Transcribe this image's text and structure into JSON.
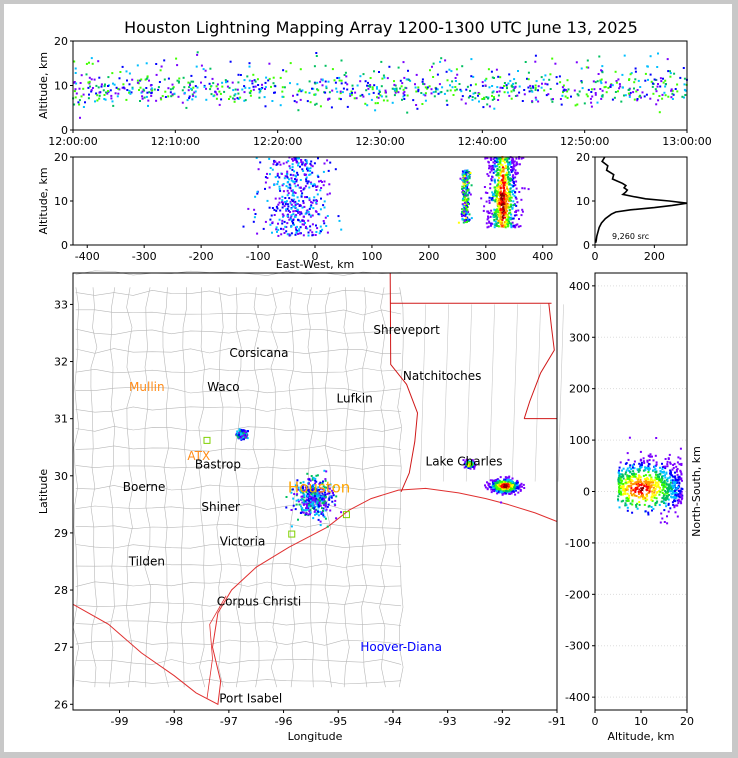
{
  "chart_data": [
    {
      "id": "time-altitude",
      "type": "scatter",
      "title": "Houston Lightning Mapping Array 1200-1300 UTC June 13, 2025",
      "xlabel": "",
      "ylabel": "Altitude, km",
      "xticks": [
        "12:00:00",
        "12:10:00",
        "12:20:00",
        "12:30:00",
        "12:40:00",
        "12:50:00",
        "13:00:00"
      ],
      "xlim_minutes": [
        0,
        60
      ],
      "ylim": [
        0,
        20
      ],
      "yticks": [
        0,
        10,
        20
      ],
      "source_band_km": [
        5,
        15
      ],
      "densest_altitude_km": 9
    },
    {
      "id": "ew-altitude",
      "type": "scatter",
      "xlabel": "East-West, km",
      "ylabel": "Altitude, km",
      "xlim": [
        -425,
        425
      ],
      "xticks": [
        -400,
        -300,
        -200,
        -100,
        0,
        100,
        200,
        300,
        400
      ],
      "ylim": [
        0,
        20
      ],
      "yticks": [
        0,
        10,
        20
      ],
      "clusters": [
        {
          "x_center": -35,
          "x_spread": 60,
          "alt_range": [
            2,
            20
          ],
          "density": "low"
        },
        {
          "x_center": 265,
          "x_spread": 8,
          "alt_range": [
            5,
            17
          ],
          "density": "medium"
        },
        {
          "x_center": 330,
          "x_spread": 30,
          "alt_range": [
            4,
            20
          ],
          "density": "high"
        }
      ]
    },
    {
      "id": "altitude-histogram",
      "type": "line",
      "xlim": [
        0,
        310
      ],
      "xticks": [
        0,
        200
      ],
      "ylim": [
        0,
        20
      ],
      "yticks": [
        0,
        10,
        20
      ],
      "annotation": "9,260 src",
      "profile": [
        {
          "alt": 0.5,
          "count": 2
        },
        {
          "alt": 1,
          "count": 4
        },
        {
          "alt": 2,
          "count": 6
        },
        {
          "alt": 3,
          "count": 10
        },
        {
          "alt": 4,
          "count": 14
        },
        {
          "alt": 5,
          "count": 22
        },
        {
          "alt": 6,
          "count": 35
        },
        {
          "alt": 7,
          "count": 55
        },
        {
          "alt": 7.5,
          "count": 70
        },
        {
          "alt": 8,
          "count": 120
        },
        {
          "alt": 8.5,
          "count": 200
        },
        {
          "alt": 9,
          "count": 260
        },
        {
          "alt": 9.5,
          "count": 310
        },
        {
          "alt": 10,
          "count": 250
        },
        {
          "alt": 10.5,
          "count": 170
        },
        {
          "alt": 11,
          "count": 130
        },
        {
          "alt": 11.5,
          "count": 100
        },
        {
          "alt": 12,
          "count": 95
        },
        {
          "alt": 12.5,
          "count": 115
        },
        {
          "alt": 13,
          "count": 90
        },
        {
          "alt": 13.5,
          "count": 110
        },
        {
          "alt": 14,
          "count": 85
        },
        {
          "alt": 15,
          "count": 65
        },
        {
          "alt": 16,
          "count": 55
        },
        {
          "alt": 17,
          "count": 45
        },
        {
          "alt": 18,
          "count": 35
        },
        {
          "alt": 19,
          "count": 30
        },
        {
          "alt": 20,
          "count": 25
        }
      ]
    },
    {
      "id": "plan-view",
      "type": "scatter",
      "xlabel": "Longitude",
      "ylabel": "Latitude",
      "xlim": [
        -99.85,
        -91
      ],
      "xticks": [
        -99,
        -98,
        -97,
        -96,
        -95,
        -94,
        -93,
        -92,
        -91
      ],
      "ylim": [
        25.9,
        33.55
      ],
      "yticks": [
        26,
        27,
        28,
        29,
        30,
        31,
        32,
        33
      ],
      "cities": [
        {
          "name": "Shreveport",
          "lon": -93.75,
          "lat": 32.55,
          "color": "#000000"
        },
        {
          "name": "Corsicana",
          "lon": -96.45,
          "lat": 32.15,
          "color": "#000000"
        },
        {
          "name": "Natchitoches",
          "lon": -93.1,
          "lat": 31.75,
          "color": "#000000"
        },
        {
          "name": "Mullin",
          "lon": -98.5,
          "lat": 31.55,
          "color": "#ff8c1a"
        },
        {
          "name": "Waco",
          "lon": -97.1,
          "lat": 31.55,
          "color": "#000000"
        },
        {
          "name": "Lufkin",
          "lon": -94.7,
          "lat": 31.35,
          "color": "#000000"
        },
        {
          "name": "ATX",
          "lon": -97.55,
          "lat": 30.35,
          "color": "#ff8c1a"
        },
        {
          "name": "Bastrop",
          "lon": -97.2,
          "lat": 30.2,
          "color": "#000000"
        },
        {
          "name": "Lake Charles",
          "lon": -92.7,
          "lat": 30.25,
          "color": "#000000"
        },
        {
          "name": "Boerne",
          "lon": -98.55,
          "lat": 29.8,
          "color": "#000000"
        },
        {
          "name": "Houston",
          "lon": -95.35,
          "lat": 29.78,
          "color": "#ffa500"
        },
        {
          "name": "Shiner",
          "lon": -97.15,
          "lat": 29.45,
          "color": "#000000"
        },
        {
          "name": "Victoria",
          "lon": -96.75,
          "lat": 28.85,
          "color": "#000000"
        },
        {
          "name": "Tilden",
          "lon": -98.5,
          "lat": 28.5,
          "color": "#000000"
        },
        {
          "name": "Corpus Christi",
          "lon": -96.45,
          "lat": 27.8,
          "color": "#000000"
        },
        {
          "name": "Hoover-Diana",
          "lon": -93.85,
          "lat": 27.0,
          "color": "#0000ff"
        },
        {
          "name": "Port Isabel",
          "lon": -96.6,
          "lat": 26.1,
          "color": "#000000"
        }
      ],
      "stations": [
        {
          "lon": -97.4,
          "lat": 30.62
        },
        {
          "lon": -95.85,
          "lat": 28.98
        },
        {
          "lon": -94.85,
          "lat": 29.32
        }
      ],
      "clusters": [
        {
          "lon": -95.45,
          "lat": 29.6,
          "r_lon": 0.35,
          "r_lat": 0.35,
          "density": "low"
        },
        {
          "lon": -92.6,
          "lat": 30.2,
          "r_lon": 0.08,
          "r_lat": 0.06,
          "density": "medium"
        },
        {
          "lon": -91.95,
          "lat": 29.82,
          "r_lon": 0.25,
          "r_lat": 0.12,
          "density": "high"
        },
        {
          "lon": -96.75,
          "lat": 30.72,
          "r_lon": 0.08,
          "r_lat": 0.06,
          "density": "low"
        }
      ]
    },
    {
      "id": "altitude-ns",
      "type": "scatter",
      "xlabel": "Altitude, km",
      "ylabel": "North-South, km",
      "xlim": [
        0,
        20
      ],
      "xticks": [
        0,
        10,
        20
      ],
      "ylim": [
        -425,
        425
      ],
      "yticks": [
        -400,
        -300,
        -200,
        -100,
        0,
        100,
        200,
        300,
        400
      ],
      "clusters": [
        {
          "alt_center": 12,
          "alt_spread": 7,
          "ns_center": 15,
          "ns_spread": 40,
          "density": "high"
        }
      ]
    }
  ]
}
